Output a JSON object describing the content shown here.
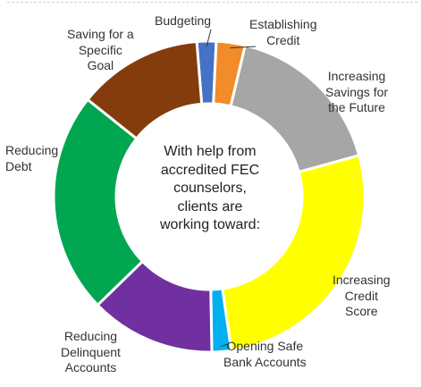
{
  "chart_data": {
    "type": "pie",
    "style": "donut",
    "center_text": [
      "With help from",
      "accredited FEC",
      "counselors,",
      "clients are",
      "working toward:"
    ],
    "slices": [
      {
        "label": "Budgeting",
        "lines": [
          "Budgeting"
        ],
        "value": 2.0,
        "color": "#4472C4"
      },
      {
        "label": "Establishing Credit",
        "lines": [
          "Establishing",
          "Credit"
        ],
        "value": 3.0,
        "color": "#F28C28"
      },
      {
        "label": "Increasing Savings for the Future",
        "lines": [
          "Increasing",
          "Savings for",
          "the Future"
        ],
        "value": 17.0,
        "color": "#A6A6A6"
      },
      {
        "label": "Increasing Credit Score",
        "lines": [
          "Increasing",
          "Credit",
          "Score"
        ],
        "value": 27.0,
        "color": "#FFFF00"
      },
      {
        "label": "Opening Safe Bank Accounts",
        "lines": [
          "Opening Safe",
          "Bank Accounts"
        ],
        "value": 2.0,
        "color": "#00B0F0"
      },
      {
        "label": "Reducing Delinquent Accounts",
        "lines": [
          "Reducing",
          "Delinquent",
          "Accounts"
        ],
        "value": 13.0,
        "color": "#7030A0"
      },
      {
        "label": "Reducing Debt",
        "lines": [
          "Reducing",
          "Debt"
        ],
        "value": 23.0,
        "color": "#00A650"
      },
      {
        "label": "Saving for a Specific Goal",
        "lines": [
          "Saving for a",
          "Specific",
          "Goal"
        ],
        "value": 13.0,
        "color": "#843C0C"
      }
    ],
    "legend": "none (callout labels)"
  }
}
